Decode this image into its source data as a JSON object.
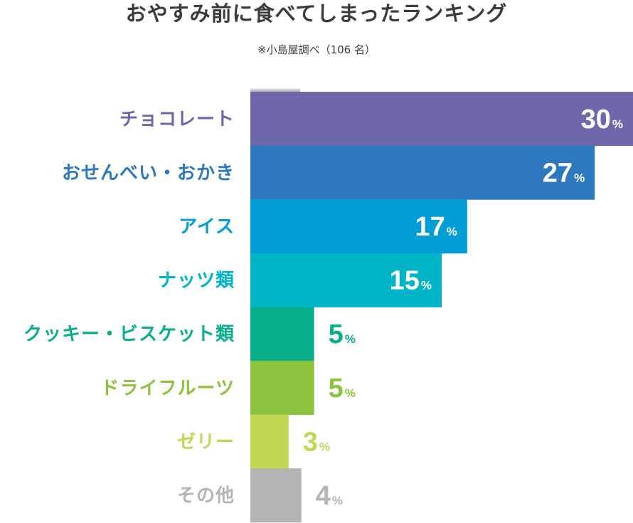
{
  "chart_data": {
    "type": "bar",
    "orientation": "horizontal",
    "title": "おやすみ前に食べてしまったランキング",
    "subtitle": "※小島屋調べ（106 名）",
    "unit": "%",
    "xlim": [
      0,
      30
    ],
    "grid": false,
    "legend": "none",
    "categories": [
      "チョコレート",
      "おせんべい・おかき",
      "アイス",
      "ナッツ類",
      "クッキー・ビスケット類",
      "ドライフルーツ",
      "ゼリー",
      "その他"
    ],
    "values": [
      30,
      27,
      17,
      15,
      5,
      5,
      3,
      4
    ],
    "colors": [
      "#6c68ab",
      "#2d78bf",
      "#009ed5",
      "#00b4c8",
      "#09ae8b",
      "#8dc23e",
      "#c3d756",
      "#b4b4b5"
    ]
  }
}
